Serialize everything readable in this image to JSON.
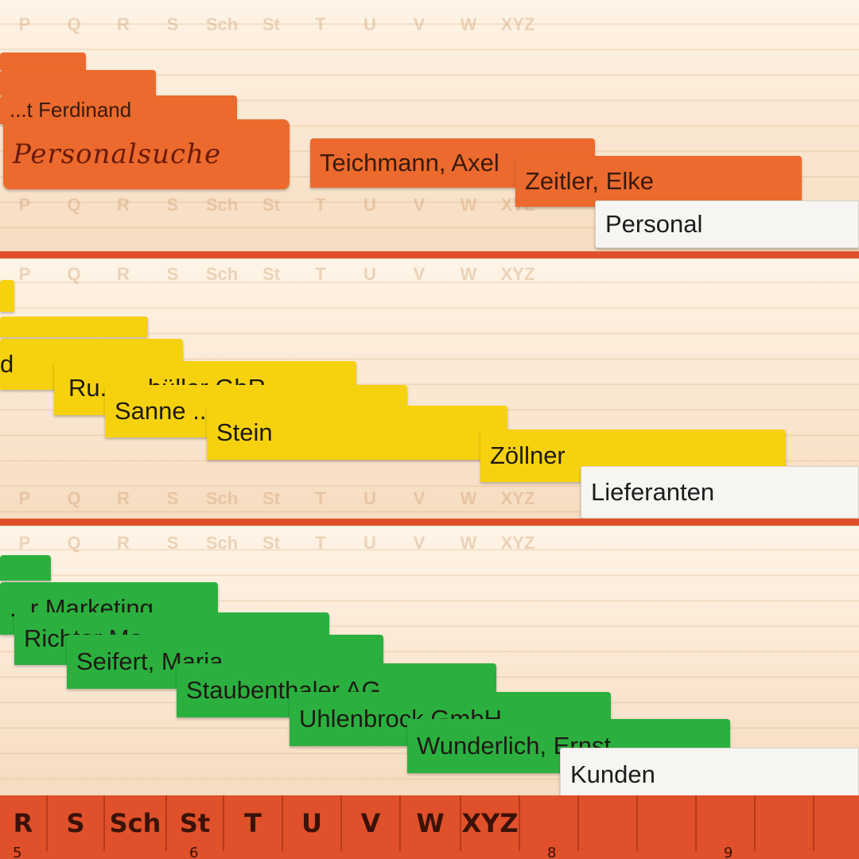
{
  "colors": {
    "divider": "#e0502a",
    "personal_tabs": "#ec6a2d",
    "supplier_tabs": "#f6d20e",
    "customer_tabs": "#2bb03f",
    "label": "#f7f5f2"
  },
  "sections": {
    "personal": {
      "label": "Personal",
      "tabs": {
        "t1": "",
        "t2": "",
        "t3": "...t Ferdinand",
        "t4": "Personalsuche",
        "t5": "Teichmann, Axel",
        "t6": "Zeitler, Elke"
      }
    },
    "suppliers": {
      "label": "Lieferanten",
      "tabs": {
        "t1": "",
        "t2": "",
        "t3": "d",
        "t4": "Ru... ...hüller GbR",
        "t5": "Sanne ...",
        "t6": "Stein",
        "t7": "Zöllner"
      }
    },
    "customers": {
      "label": "Kunden",
      "tabs": {
        "t1": "",
        "t2": "...r Marketing",
        "t3": "Richter Ma...",
        "t4": "Seifert, Maria",
        "t5": "Staubenthaler AG",
        "t6": "Uhlenbrock GmbH",
        "t7": "Wunderlich, Ernst"
      }
    }
  },
  "index_letters": [
    "R",
    "S",
    "Sch",
    "St",
    "T",
    "U",
    "V",
    "W",
    "XYZ"
  ],
  "index_numbers": [
    "5",
    "6",
    "",
    "",
    "8",
    "9"
  ],
  "ghost_letters": [
    "P",
    "Q",
    "R",
    "S",
    "Sch",
    "St",
    "T",
    "U",
    "V",
    "W",
    "XYZ"
  ]
}
